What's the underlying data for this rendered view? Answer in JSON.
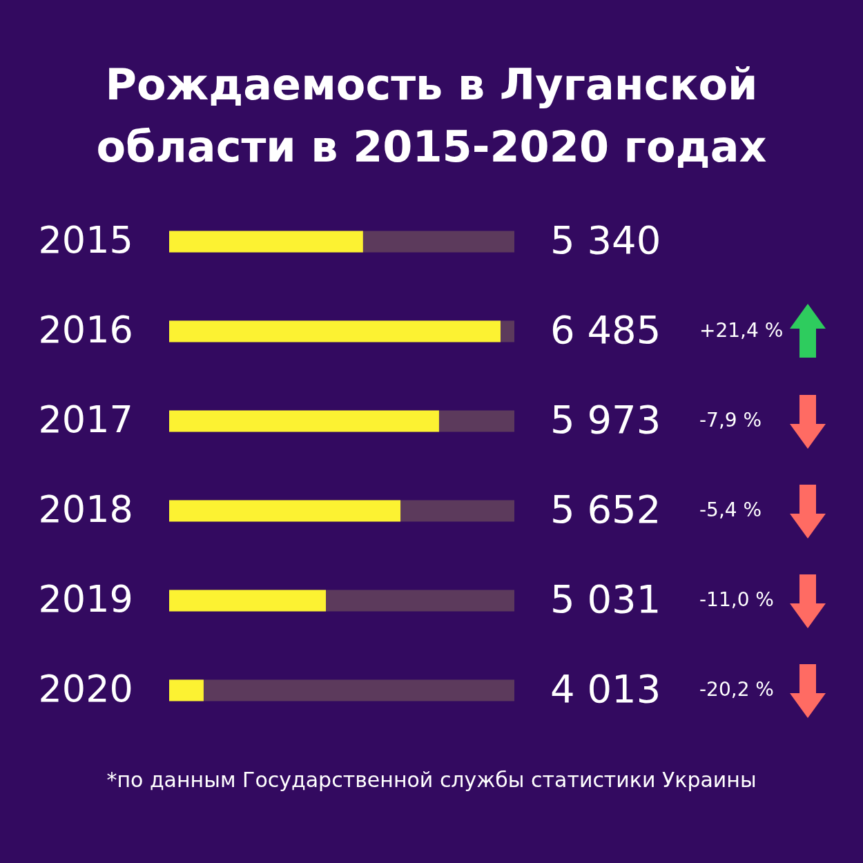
{
  "chart_data": {
    "type": "bar",
    "orientation": "horizontal",
    "title": "Рождаемость в Луганской области в 2015-2020 годах",
    "categories": [
      "2015",
      "2016",
      "2017",
      "2018",
      "2019",
      "2020"
    ],
    "values": [
      5340,
      6485,
      5973,
      5652,
      5031,
      4013
    ],
    "value_labels": [
      "5 340",
      "6 485",
      "5 973",
      "5 652",
      "5 031",
      "4 013"
    ],
    "color": "#fcf232",
    "xlim": [
      3726,
      6600
    ],
    "tick_labels": "y",
    "annotations": [
      "+21,4 %",
      "-7,9 %",
      "-5,4 %",
      "-11,0 %",
      "-20,2 %",
      "*по данным Государственной службы статистики Украины"
    ]
  }
}
